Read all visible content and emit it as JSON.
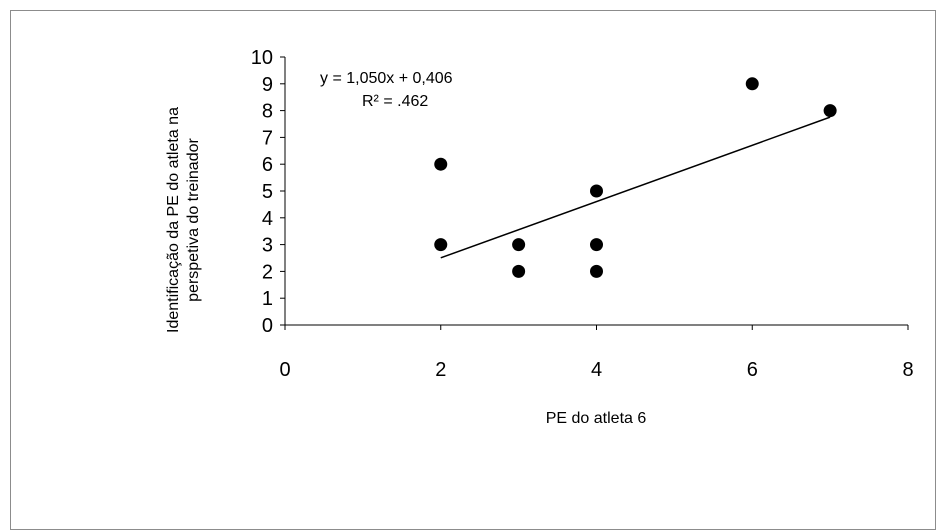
{
  "chart_data": {
    "type": "scatter",
    "title": "",
    "xlabel": "PE do atleta 6",
    "ylabel_lines": [
      "Identificação da PE do atleta na",
      "perspetiva do treinador"
    ],
    "xlim": [
      0,
      8
    ],
    "ylim": [
      0,
      10
    ],
    "xticks": [
      0,
      2,
      4,
      6,
      8
    ],
    "yticks": [
      0,
      1,
      2,
      3,
      4,
      5,
      6,
      7,
      8,
      9,
      10
    ],
    "points": [
      {
        "x": 2,
        "y": 6
      },
      {
        "x": 2,
        "y": 3
      },
      {
        "x": 3,
        "y": 3
      },
      {
        "x": 3,
        "y": 2
      },
      {
        "x": 4,
        "y": 5
      },
      {
        "x": 4,
        "y": 3
      },
      {
        "x": 4,
        "y": 2
      },
      {
        "x": 6,
        "y": 9
      },
      {
        "x": 7,
        "y": 8
      }
    ],
    "trendline": {
      "type": "linear",
      "slope": 1.05,
      "intercept": 0.406,
      "x_range": [
        2,
        7
      ]
    },
    "annotations": {
      "equation": "y = 1,050x + 0,406",
      "r_squared": "R² =  .462"
    },
    "grid": false,
    "legend": "none",
    "colors": {
      "points": "#000000",
      "line": "#000000",
      "frame": "#8c8c8c"
    }
  }
}
